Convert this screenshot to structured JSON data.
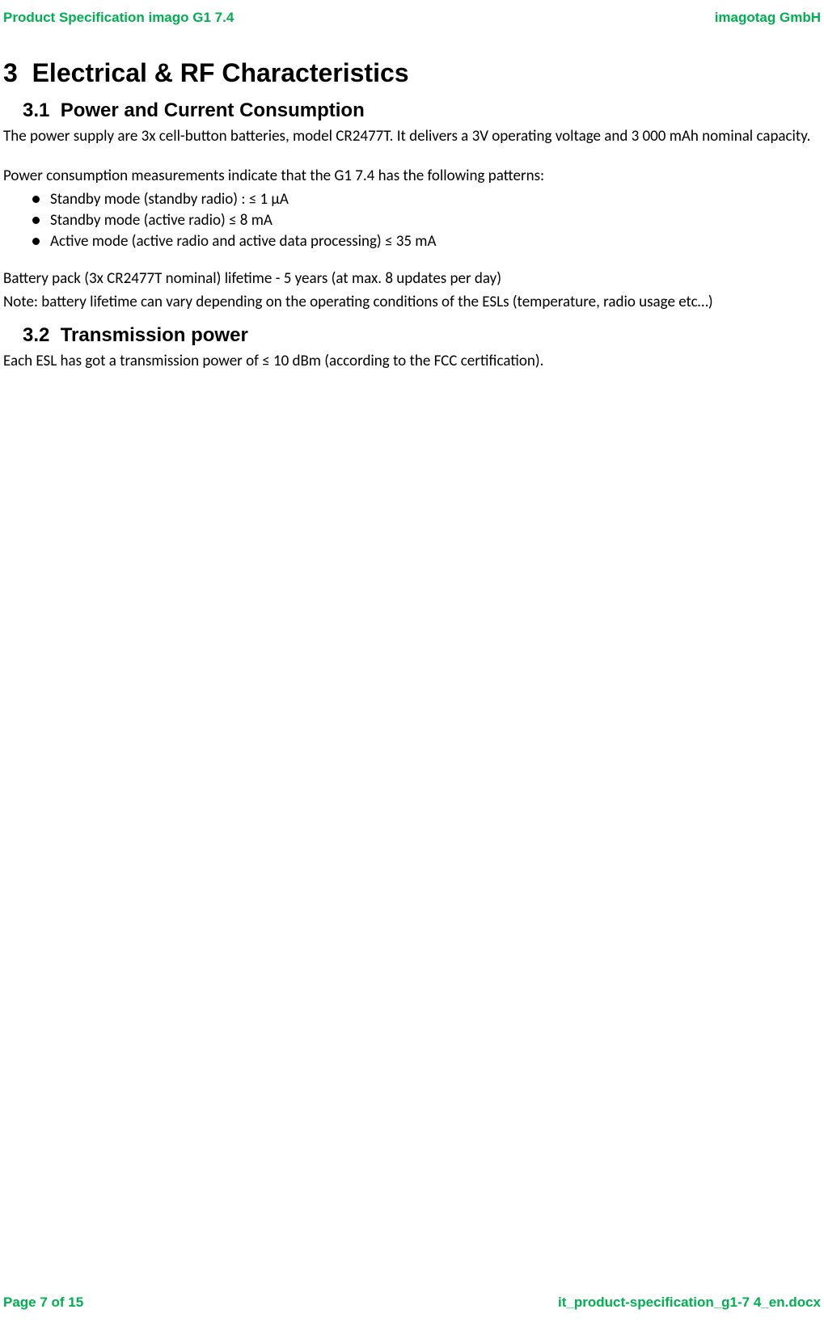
{
  "header": {
    "left": "Product Specification imago G1 7.4",
    "right": "imagotag GmbH"
  },
  "section": {
    "number": "3",
    "title": "Electrical & RF Characteristics"
  },
  "sub1": {
    "number": "3.1",
    "title": "Power and Current Consumption",
    "para1": "The power supply are 3x cell-button batteries, model CR2477T. It delivers a 3V operating voltage and 3 000 mAh nominal capacity.",
    "para2": "Power consumption measurements indicate that the G1 7.4 has the following patterns:",
    "bullets": [
      "Standby mode (standby radio) : ≤ 1 µA",
      "Standby mode (active radio) ≤ 8 mA",
      "Active mode (active radio and active data processing) ≤ 35 mA"
    ],
    "para3": "Battery pack (3x CR2477T nominal) lifetime - 5 years (at max. 8 updates per day)",
    "para4": "Note: battery lifetime can vary depending on the operating conditions of the ESLs (temperature, radio usage etc…)"
  },
  "sub2": {
    "number": "3.2",
    "title": "Transmission power",
    "para1": "Each ESL has got a transmission power of ≤ 10 dBm (according to the FCC certification)."
  },
  "footer": {
    "left": "Page 7 of 15",
    "right": "it_product-specification_g1-7 4_en.docx"
  },
  "colors": {
    "accent": "#00b050",
    "text": "#000000",
    "background": "#ffffff"
  },
  "typography": {
    "header_fontsize": 17,
    "h1_fontsize": 32,
    "h2_fontsize": 24,
    "body_fontsize": 19,
    "footer_fontsize": 17
  }
}
